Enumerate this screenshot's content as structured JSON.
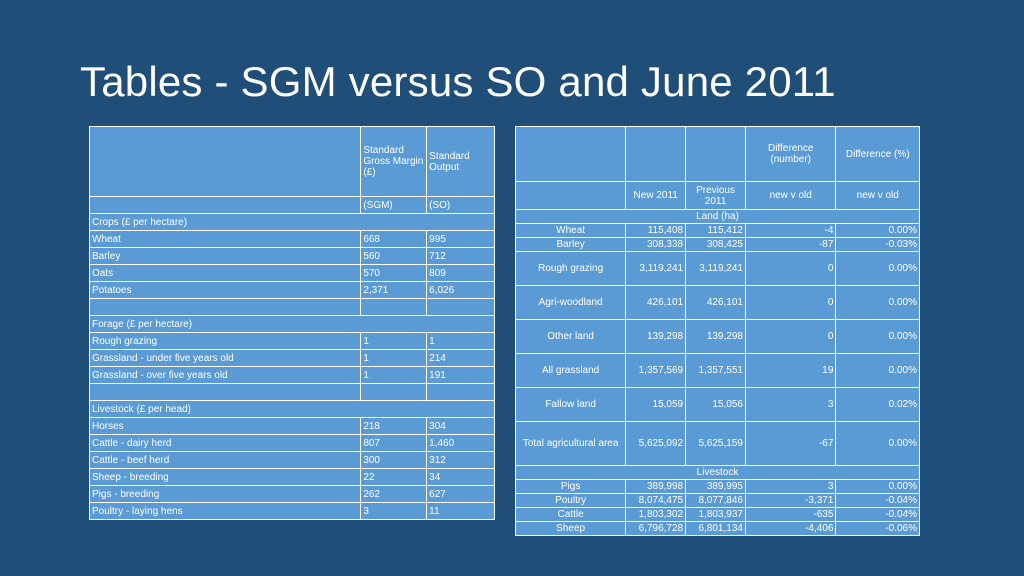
{
  "title": "Tables - SGM versus SO and June 2011",
  "table1": {
    "header": {
      "col2": "Standard Gross Margin (£)",
      "col3": "Standard Output",
      "col2_sub": "(SGM)",
      "col3_sub": "(SO)"
    },
    "sections": {
      "crops": "Crops (£ per hectare)",
      "forage": "Forage (£ per hectare)",
      "livestock": "Livestock (£ per head)"
    },
    "crops": [
      {
        "name": "Wheat",
        "sgm": "668",
        "so": "995"
      },
      {
        "name": "Barley",
        "sgm": "560",
        "so": "712"
      },
      {
        "name": "Oats",
        "sgm": "570",
        "so": "809"
      },
      {
        "name": "Potatoes",
        "sgm": "2,371",
        "so": "6,026"
      }
    ],
    "forage": [
      {
        "name": "Rough grazing",
        "sgm": "1",
        "so": "1"
      },
      {
        "name": "Grassland - under five years old",
        "sgm": "1",
        "so": "214"
      },
      {
        "name": "Grassland - over five years old",
        "sgm": "1",
        "so": "191"
      }
    ],
    "livestock": [
      {
        "name": "Horses",
        "sgm": "218",
        "so": "304"
      },
      {
        "name": "Cattle - dairy herd",
        "sgm": "807",
        "so": "1,460"
      },
      {
        "name": "Cattle - beef herd",
        "sgm": "300",
        "so": "312"
      },
      {
        "name": "Sheep - breeding",
        "sgm": "22",
        "so": "34"
      },
      {
        "name": "Pigs - breeding",
        "sgm": "262",
        "so": "627"
      },
      {
        "name": "Poultry - laying hens",
        "sgm": "3",
        "so": "11"
      }
    ]
  },
  "table2": {
    "header": {
      "diff_number": "Difference (number)",
      "diff_percent": "Difference (%)",
      "new": "New 2011",
      "previous": "Previous 2011",
      "new_v_old_1": "new v old",
      "new_v_old_2": "new v old"
    },
    "sections": {
      "land": "Land (ha)",
      "livestock": "Livestock"
    },
    "land": [
      {
        "name": "Wheat",
        "new": "115,408",
        "prev": "115,412",
        "diff": "-4",
        "pct": "0.00%"
      },
      {
        "name": "Barley",
        "new": "308,338",
        "prev": "308,425",
        "diff": "-87",
        "pct": "-0.03%"
      },
      {
        "name": "Rough grazing",
        "new": "3,119,241",
        "prev": "3,119,241",
        "diff": "0",
        "pct": "0.00%"
      },
      {
        "name": "Agri-woodland",
        "new": "426,101",
        "prev": "426,101",
        "diff": "0",
        "pct": "0.00%"
      },
      {
        "name": "Other land",
        "new": "139,298",
        "prev": "139,298",
        "diff": "0",
        "pct": "0.00%"
      },
      {
        "name": "All grassland",
        "new": "1,357,569",
        "prev": "1,357,551",
        "diff": "19",
        "pct": "0.00%"
      },
      {
        "name": "Fallow land",
        "new": "15,059",
        "prev": "15,056",
        "diff": "3",
        "pct": "0.02%"
      },
      {
        "name": "Total agricultural area",
        "new": "5,625,092",
        "prev": "5,625,159",
        "diff": "-67",
        "pct": "0.00%"
      }
    ],
    "livestock": [
      {
        "name": "Pigs",
        "new": "389,998",
        "prev": "389,995",
        "diff": "3",
        "pct": "0.00%"
      },
      {
        "name": "Poultry",
        "new": "8,074,475",
        "prev": "8,077,846",
        "diff": "-3,371",
        "pct": "-0.04%"
      },
      {
        "name": "Cattle",
        "new": "1,803,302",
        "prev": "1,803,937",
        "diff": "-635",
        "pct": "-0.04%"
      },
      {
        "name": "Sheep",
        "new": "6,796,728",
        "prev": "6,801,134",
        "diff": "-4,406",
        "pct": "-0.06%"
      }
    ]
  }
}
